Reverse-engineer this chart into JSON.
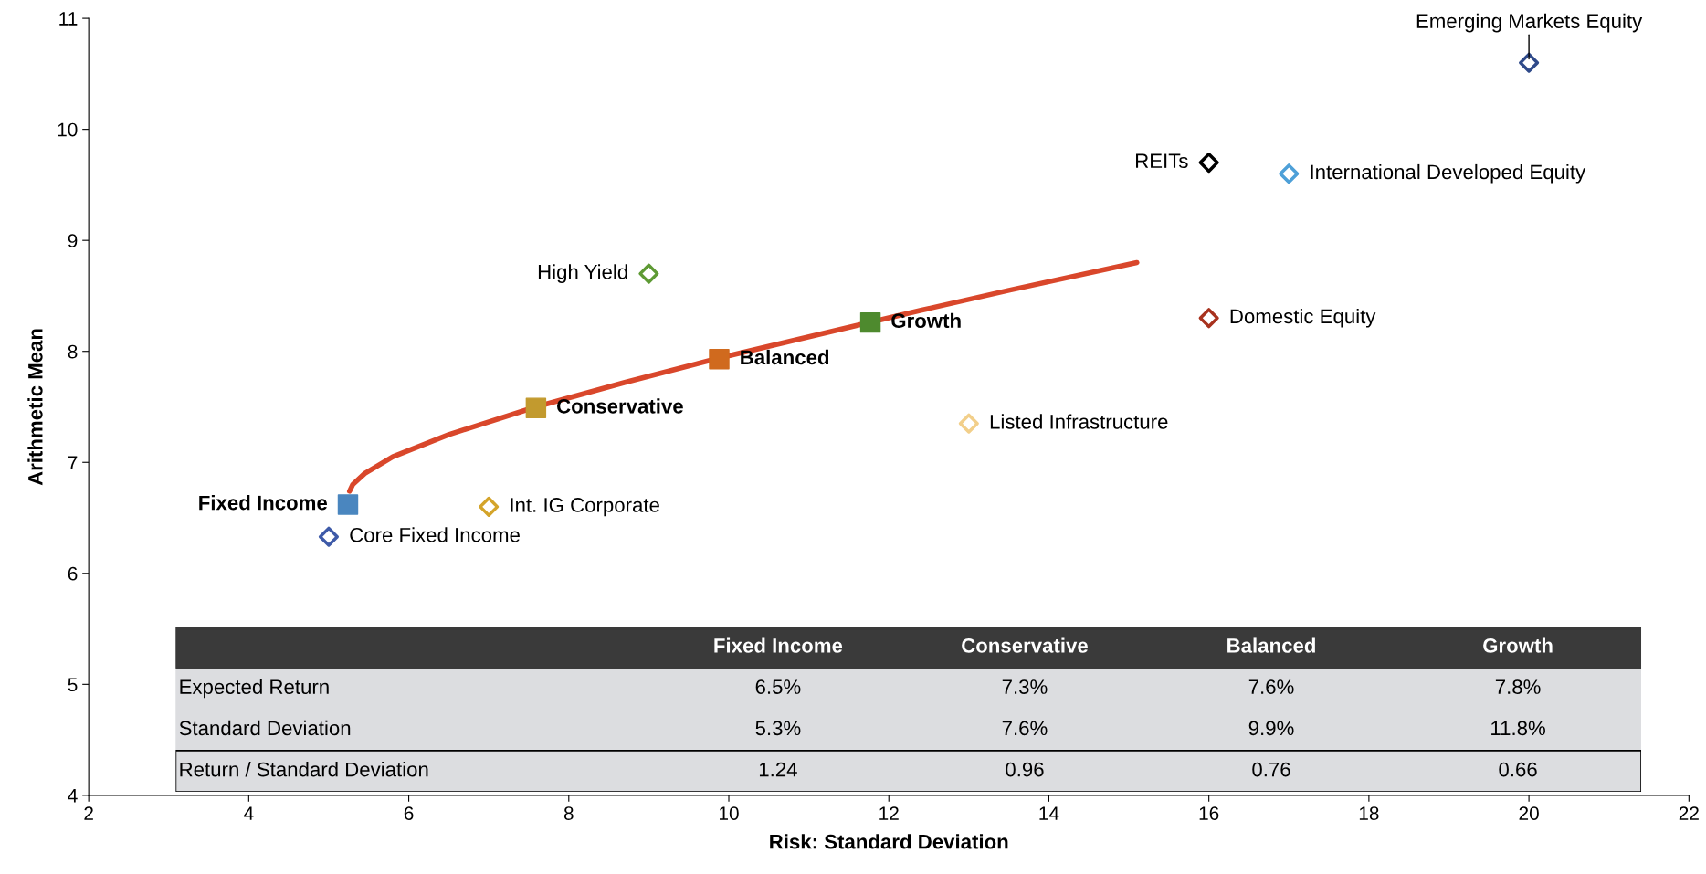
{
  "chart_data": [
    {
      "type": "scatter",
      "xlabel": "Risk: Standard Deviation",
      "ylabel": "Arithmetic Mean",
      "xlim": [
        2,
        22
      ],
      "ylim": [
        4,
        11
      ],
      "xticks": [
        2,
        4,
        6,
        8,
        10,
        12,
        14,
        16,
        18,
        20,
        22
      ],
      "yticks": [
        4,
        5,
        6,
        7,
        8,
        9,
        10,
        11
      ],
      "series": [
        {
          "type": "line",
          "color": "#d9472b",
          "line_style": "solid",
          "marker": "none",
          "x": [
            5.26,
            5.3,
            5.45,
            5.8,
            6.5,
            7.59,
            8.7,
            9.88,
            12.4,
            13.5,
            15.1
          ],
          "values": [
            6.74,
            6.8,
            6.9,
            7.05,
            7.25,
            7.5,
            7.72,
            7.94,
            8.37,
            8.55,
            8.8
          ]
        },
        {
          "name": "Fixed Income",
          "color": "#4a86bf",
          "marker": "square",
          "x": [
            5.24
          ],
          "values": [
            6.62
          ]
        },
        {
          "name": "Conservative",
          "color": "#c29a2e",
          "marker": "square",
          "x": [
            7.59
          ],
          "values": [
            7.49
          ]
        },
        {
          "name": "Balanced",
          "color": "#d06a1e",
          "marker": "square",
          "x": [
            9.88
          ],
          "values": [
            7.93
          ]
        },
        {
          "name": "Growth",
          "color": "#4e8a2e",
          "marker": "square",
          "x": [
            11.77
          ],
          "values": [
            8.26
          ]
        },
        {
          "name": "Core Fixed Income",
          "color": "#3e5aa8",
          "marker": "diamond",
          "x": [
            5
          ],
          "values": [
            6.33
          ]
        },
        {
          "name": "Int. IG Corporate",
          "color": "#d4a42a",
          "marker": "diamond",
          "x": [
            7
          ],
          "values": [
            6.6
          ]
        },
        {
          "name": "High Yield",
          "color": "#5e9a34",
          "marker": "diamond",
          "x": [
            9
          ],
          "values": [
            8.7
          ]
        },
        {
          "name": "Listed Infrastructure",
          "color": "#f2cf8a",
          "marker": "diamond",
          "x": [
            13
          ],
          "values": [
            7.35
          ]
        },
        {
          "name": "Domestic Equity",
          "color": "#a8321e",
          "marker": "diamond",
          "x": [
            16
          ],
          "values": [
            8.3
          ]
        },
        {
          "name": "REITs",
          "color": "#000000",
          "marker": "diamond",
          "x": [
            16
          ],
          "values": [
            9.7
          ]
        },
        {
          "name": "International Developed Equity",
          "color": "#4ea0d8",
          "marker": "diamond",
          "x": [
            17
          ],
          "values": [
            9.6
          ]
        },
        {
          "name": "Emerging Markets Equity",
          "color": "#2f4a8a",
          "marker": "diamond",
          "x": [
            20
          ],
          "values": [
            10.6
          ]
        }
      ]
    },
    {
      "type": "other",
      "categories": [
        "Fixed Income",
        "Conservative",
        "Balanced",
        "Growth"
      ],
      "y_categories": [
        "Expected Return",
        "Standard Deviation",
        "Return / Standard Deviation"
      ],
      "cell_labels": [
        [
          "6.5%",
          "7.3%",
          "7.6%",
          "7.8%"
        ],
        [
          "5.3%",
          "7.6%",
          "9.9%",
          "11.8%"
        ],
        [
          "1.24",
          "0.96",
          "0.76",
          "0.66"
        ]
      ]
    }
  ]
}
